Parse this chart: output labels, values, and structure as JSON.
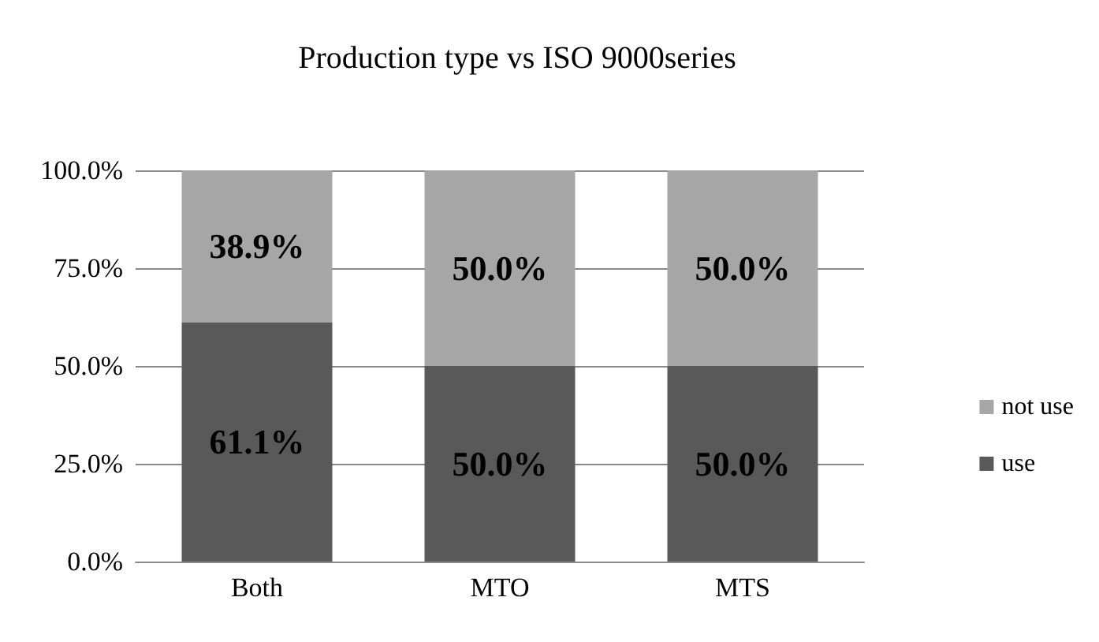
{
  "chart_data": {
    "type": "bar",
    "title": "Production type vs ISO 9000series",
    "categories": [
      "Both",
      "MTO",
      "MTS"
    ],
    "stacked": true,
    "series": [
      {
        "name": "use",
        "color": "#595959",
        "values": [
          61.1,
          50.0,
          50.0
        ],
        "value_labels": [
          "61.1%",
          "50.0%",
          "50.0%"
        ]
      },
      {
        "name": "not use",
        "color": "#a6a6a6",
        "values": [
          38.9,
          50.0,
          50.0
        ],
        "value_labels": [
          "38.9%",
          "50.0%",
          "50.0%"
        ]
      }
    ],
    "ylim": [
      0,
      100
    ],
    "yticks": [
      {
        "value": 0,
        "label": "0.0%"
      },
      {
        "value": 25,
        "label": "25.0%"
      },
      {
        "value": 50,
        "label": "50.0%"
      },
      {
        "value": 75,
        "label": "75.0%"
      },
      {
        "value": 100,
        "label": "100.0%"
      }
    ],
    "grid": "y",
    "legend": "right"
  }
}
